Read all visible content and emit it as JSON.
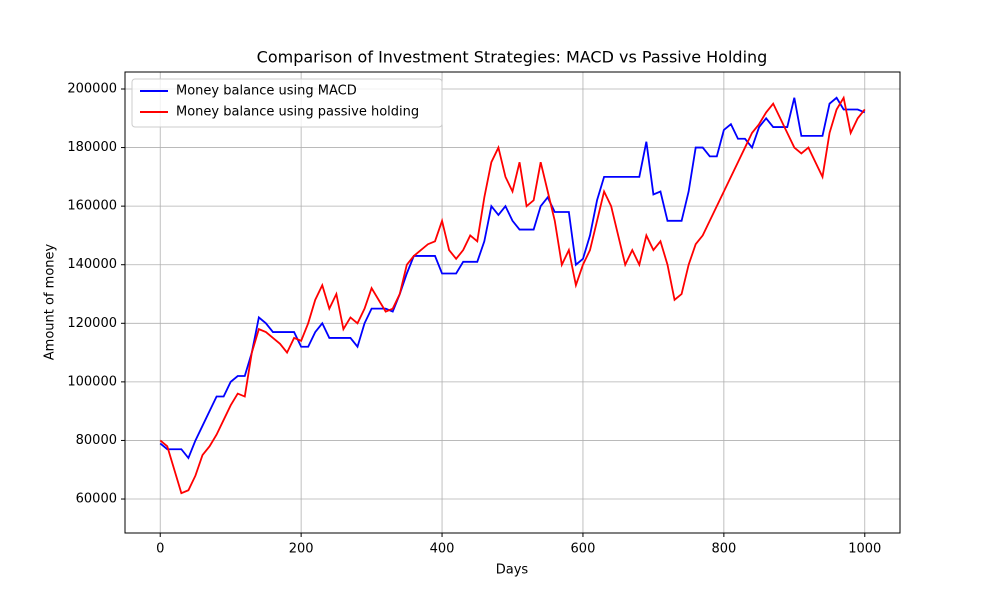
{
  "chart_data": {
    "type": "line",
    "title": "Comparison of Investment Strategies: MACD vs Passive Holding",
    "xlabel": "Days",
    "ylabel": "Amount of money",
    "x": [
      0,
      10,
      20,
      30,
      40,
      50,
      60,
      70,
      80,
      90,
      100,
      110,
      120,
      130,
      140,
      150,
      160,
      170,
      180,
      190,
      200,
      210,
      220,
      230,
      240,
      250,
      260,
      270,
      280,
      290,
      300,
      310,
      320,
      330,
      340,
      350,
      360,
      370,
      380,
      390,
      400,
      410,
      420,
      430,
      440,
      450,
      460,
      470,
      480,
      490,
      500,
      510,
      520,
      530,
      540,
      550,
      560,
      570,
      580,
      590,
      600,
      610,
      620,
      630,
      640,
      650,
      660,
      670,
      680,
      690,
      700,
      710,
      720,
      730,
      740,
      750,
      760,
      770,
      780,
      790,
      800,
      810,
      820,
      830,
      840,
      850,
      860,
      870,
      880,
      890,
      900,
      910,
      920,
      930,
      940,
      950,
      960,
      970,
      980,
      990,
      1000
    ],
    "series": [
      {
        "name": "Money balance using MACD",
        "color": "#0000ff",
        "values": [
          79000,
          77000,
          77000,
          77000,
          74000,
          80000,
          85000,
          90000,
          95000,
          95000,
          100000,
          102000,
          102000,
          110000,
          122000,
          120000,
          117000,
          117000,
          117000,
          117000,
          112000,
          112000,
          117000,
          120000,
          115000,
          115000,
          115000,
          115000,
          112000,
          120000,
          125000,
          125000,
          125000,
          124000,
          130000,
          137000,
          143000,
          143000,
          143000,
          143000,
          137000,
          137000,
          137000,
          141000,
          141000,
          141000,
          148000,
          160000,
          157000,
          160000,
          155000,
          152000,
          152000,
          152000,
          160000,
          163000,
          158000,
          158000,
          158000,
          140000,
          142000,
          150000,
          162000,
          170000,
          170000,
          170000,
          170000,
          170000,
          170000,
          182000,
          164000,
          165000,
          155000,
          155000,
          155000,
          165000,
          180000,
          180000,
          177000,
          177000,
          186000,
          188000,
          183000,
          183000,
          180000,
          187000,
          190000,
          187000,
          187000,
          187000,
          197000,
          184000,
          184000,
          184000,
          184000,
          195000,
          197000,
          193000,
          193000,
          193000,
          192000
        ]
      },
      {
        "name": "Money balance using passive holding",
        "color": "#ff0000",
        "values": [
          80000,
          78000,
          70000,
          62000,
          63000,
          68000,
          75000,
          78000,
          82000,
          87000,
          92000,
          96000,
          95000,
          110000,
          118000,
          117000,
          115000,
          113000,
          110000,
          115000,
          114000,
          120000,
          128000,
          133000,
          125000,
          130000,
          118000,
          122000,
          120000,
          125000,
          132000,
          128000,
          124000,
          125000,
          130000,
          140000,
          143000,
          145000,
          147000,
          148000,
          155000,
          145000,
          142000,
          145000,
          150000,
          148000,
          163000,
          175000,
          180000,
          170000,
          165000,
          175000,
          160000,
          162000,
          175000,
          165000,
          155000,
          140000,
          145000,
          133000,
          140000,
          145000,
          155000,
          165000,
          160000,
          150000,
          140000,
          145000,
          140000,
          150000,
          145000,
          148000,
          140000,
          128000,
          130000,
          140000,
          147000,
          150000,
          155000,
          160000,
          165000,
          170000,
          175000,
          180000,
          185000,
          188000,
          192000,
          195000,
          190000,
          185000,
          180000,
          178000,
          180000,
          175000,
          170000,
          185000,
          193000,
          197000,
          185000,
          190000,
          193000
        ]
      }
    ],
    "xlim": [
      -50,
      1050
    ],
    "ylim": [
      48400,
      205800
    ],
    "xticks": [
      0,
      200,
      400,
      600,
      800,
      1000
    ],
    "yticks": [
      60000,
      80000,
      100000,
      120000,
      140000,
      160000,
      180000,
      200000
    ],
    "grid": true,
    "legend": "upper left"
  }
}
